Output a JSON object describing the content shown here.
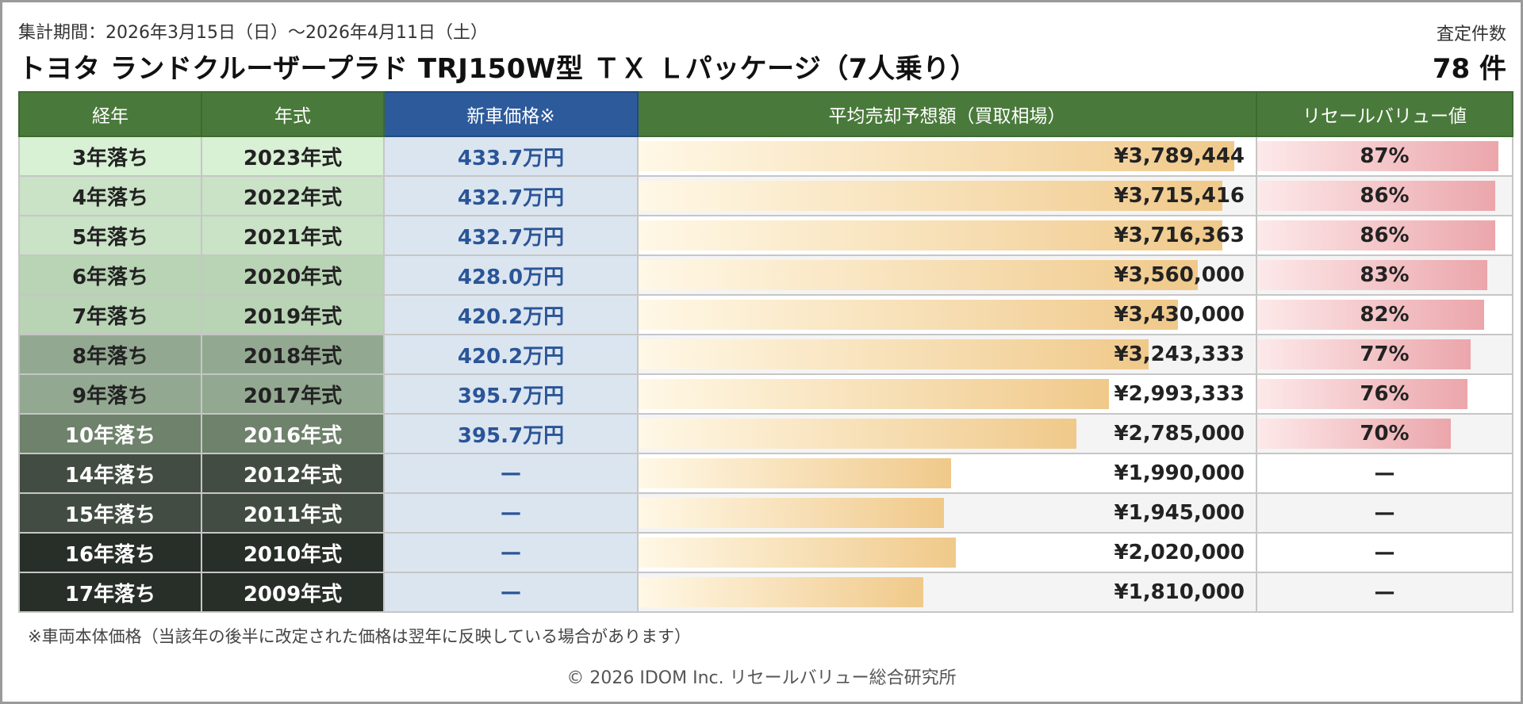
{
  "header": {
    "period": "集計期間：2026年3月15日（日）〜2026年4月11日（土）",
    "title": "トヨタ ランドクルーザープラド TRJ150W型 ＴＸ Ｌパッケージ（7人乗り）",
    "count_label": "査定件数",
    "count_value": "78 件"
  },
  "table": {
    "columns": [
      "経年",
      "年式",
      "新車価格※",
      "平均売却予想額（買取相場）",
      "リセールバリュー値"
    ],
    "rows": [
      {
        "age": "3年落ち",
        "year": "2023年式",
        "new_price": "433.7万円",
        "avg": "¥3,789,444",
        "avg_num": 3789444,
        "rv": "87%",
        "rv_num": 87
      },
      {
        "age": "4年落ち",
        "year": "2022年式",
        "new_price": "432.7万円",
        "avg": "¥3,715,416",
        "avg_num": 3715416,
        "rv": "86%",
        "rv_num": 86
      },
      {
        "age": "5年落ち",
        "year": "2021年式",
        "new_price": "432.7万円",
        "avg": "¥3,716,363",
        "avg_num": 3716363,
        "rv": "86%",
        "rv_num": 86
      },
      {
        "age": "6年落ち",
        "year": "2020年式",
        "new_price": "428.0万円",
        "avg": "¥3,560,000",
        "avg_num": 3560000,
        "rv": "83%",
        "rv_num": 83
      },
      {
        "age": "7年落ち",
        "year": "2019年式",
        "new_price": "420.2万円",
        "avg": "¥3,430,000",
        "avg_num": 3430000,
        "rv": "82%",
        "rv_num": 82
      },
      {
        "age": "8年落ち",
        "year": "2018年式",
        "new_price": "420.2万円",
        "avg": "¥3,243,333",
        "avg_num": 3243333,
        "rv": "77%",
        "rv_num": 77
      },
      {
        "age": "9年落ち",
        "year": "2017年式",
        "new_price": "395.7万円",
        "avg": "¥2,993,333",
        "avg_num": 2993333,
        "rv": "76%",
        "rv_num": 76
      },
      {
        "age": "10年落ち",
        "year": "2016年式",
        "new_price": "395.7万円",
        "avg": "¥2,785,000",
        "avg_num": 2785000,
        "rv": "70%",
        "rv_num": 70
      },
      {
        "age": "14年落ち",
        "year": "2012年式",
        "new_price": "—",
        "avg": "¥1,990,000",
        "avg_num": 1990000,
        "rv": "—",
        "rv_num": null
      },
      {
        "age": "15年落ち",
        "year": "2011年式",
        "new_price": "—",
        "avg": "¥1,945,000",
        "avg_num": 1945000,
        "rv": "—",
        "rv_num": null
      },
      {
        "age": "16年落ち",
        "year": "2010年式",
        "new_price": "—",
        "avg": "¥2,020,000",
        "avg_num": 2020000,
        "rv": "—",
        "rv_num": null
      },
      {
        "age": "17年落ち",
        "year": "2009年式",
        "new_price": "—",
        "avg": "¥1,810,000",
        "avg_num": 1810000,
        "rv": "—",
        "rv_num": null
      }
    ],
    "age_colors": [
      "#d8f0d4",
      "#cae2c6",
      "#cae2c6",
      "#b9d3b5",
      "#b9d3b5",
      "#93a891",
      "#93a891",
      "#6f826c",
      "#434c42",
      "#434c42",
      "#282e28",
      "#282e28"
    ]
  },
  "footnote": "※車両本体価格（当該年の後半に改定された価格は翌年に反映している場合があります）",
  "copyright": "© 2026 IDOM Inc. リセールバリュー総合研究所"
}
